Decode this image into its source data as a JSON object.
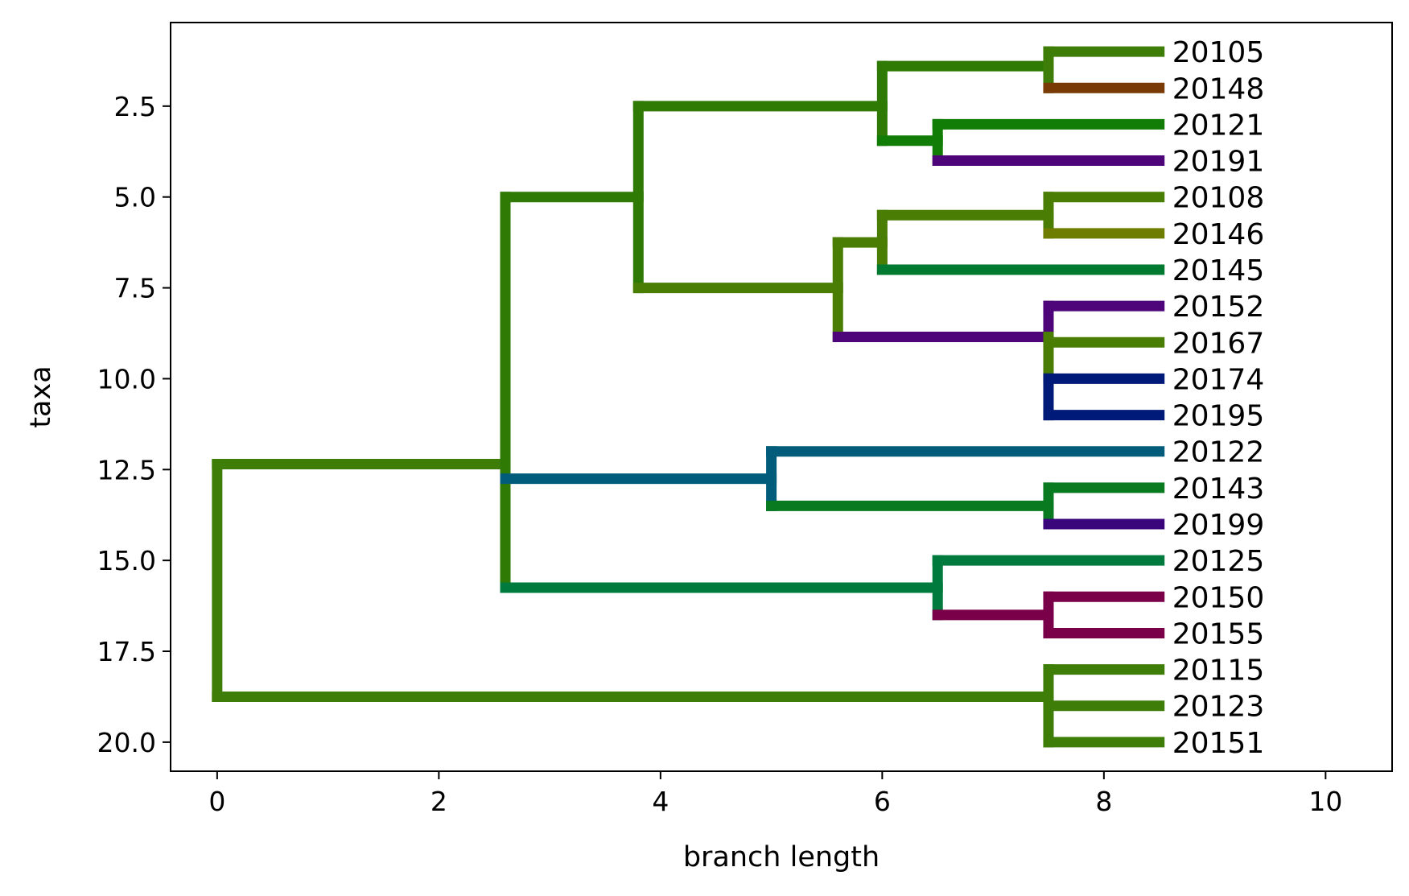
{
  "chart_data": {
    "type": "tree",
    "xlabel": "branch length",
    "ylabel": "taxa",
    "xlim": [
      -0.42,
      10.6
    ],
    "ylim": [
      20.8,
      0.2
    ],
    "xticks": [
      "0",
      "2",
      "4",
      "6",
      "8",
      "10"
    ],
    "xtick_values": [
      0,
      2,
      4,
      6,
      8,
      10
    ],
    "yticks": [
      "2.5",
      "5.0",
      "7.5",
      "10.0",
      "12.5",
      "15.0",
      "17.5",
      "20.0"
    ],
    "ytick_values": [
      2.5,
      5.0,
      7.5,
      10.0,
      12.5,
      15.0,
      17.5,
      20.0
    ],
    "leaves": [
      {
        "name": "20105",
        "y": 1,
        "x": 8.5
      },
      {
        "name": "20148",
        "y": 2,
        "x": 8.5
      },
      {
        "name": "20121",
        "y": 3,
        "x": 8.5
      },
      {
        "name": "20191",
        "y": 4,
        "x": 8.5
      },
      {
        "name": "20108",
        "y": 5,
        "x": 8.5
      },
      {
        "name": "20146",
        "y": 6,
        "x": 8.5
      },
      {
        "name": "20145",
        "y": 7,
        "x": 8.5
      },
      {
        "name": "20152",
        "y": 8,
        "x": 8.5
      },
      {
        "name": "20167",
        "y": 9,
        "x": 8.5
      },
      {
        "name": "20174",
        "y": 10,
        "x": 8.5
      },
      {
        "name": "20195",
        "y": 11,
        "x": 8.5
      },
      {
        "name": "20122",
        "y": 12,
        "x": 8.5
      },
      {
        "name": "20143",
        "y": 13,
        "x": 8.5
      },
      {
        "name": "20199",
        "y": 14,
        "x": 8.5
      },
      {
        "name": "20125",
        "y": 15,
        "x": 8.5
      },
      {
        "name": "20150",
        "y": 16,
        "x": 8.5
      },
      {
        "name": "20155",
        "y": 17,
        "x": 8.5
      },
      {
        "name": "20115",
        "y": 18,
        "x": 8.5
      },
      {
        "name": "20123",
        "y": 19,
        "x": 8.5
      },
      {
        "name": "20151",
        "y": 20,
        "x": 8.5
      }
    ],
    "segments": [
      {
        "x1": 0,
        "y1": 12.35,
        "x2": 0,
        "y2": 18.75,
        "color": "#3d7d08"
      },
      {
        "x1": 0,
        "y1": 12.35,
        "x2": 2.6,
        "y2": 12.35,
        "color": "#3d7d08"
      },
      {
        "x1": 0,
        "y1": 18.75,
        "x2": 7.5,
        "y2": 18.75,
        "color": "#3d7d08"
      },
      {
        "x1": 2.6,
        "y1": 5.0,
        "x2": 2.6,
        "y2": 12.35,
        "color": "#2f7a05"
      },
      {
        "x1": 2.6,
        "y1": 12.35,
        "x2": 2.6,
        "y2": 15.75,
        "color": "#2f7a05"
      },
      {
        "x1": 2.6,
        "y1": 5.0,
        "x2": 3.8,
        "y2": 5.0,
        "color": "#2f7a05"
      },
      {
        "x1": 2.6,
        "y1": 12.75,
        "x2": 5.0,
        "y2": 12.75,
        "color": "#005c7a"
      },
      {
        "x1": 2.6,
        "y1": 15.75,
        "x2": 6.5,
        "y2": 15.75,
        "color": "#007a3d"
      },
      {
        "x1": 3.8,
        "y1": 2.5,
        "x2": 3.8,
        "y2": 7.5,
        "color": "#2f7a05"
      },
      {
        "x1": 3.8,
        "y1": 2.5,
        "x2": 6.0,
        "y2": 2.5,
        "color": "#2f7a05"
      },
      {
        "x1": 3.8,
        "y1": 7.5,
        "x2": 5.6,
        "y2": 7.5,
        "color": "#4a7d04"
      },
      {
        "x1": 6.0,
        "y1": 1.4,
        "x2": 6.0,
        "y2": 3.45,
        "color": "#2f7a05"
      },
      {
        "x1": 6.0,
        "y1": 1.4,
        "x2": 7.5,
        "y2": 1.4,
        "color": "#2f7a05"
      },
      {
        "x1": 6.0,
        "y1": 3.45,
        "x2": 6.5,
        "y2": 3.45,
        "color": "#127d06"
      },
      {
        "x1": 7.5,
        "y1": 1.0,
        "x2": 7.5,
        "y2": 2.0,
        "color": "#3d7d08"
      },
      {
        "x1": 7.5,
        "y1": 1.0,
        "x2": 8.5,
        "y2": 1.0,
        "color": "#3d7d08"
      },
      {
        "x1": 7.5,
        "y1": 2.0,
        "x2": 8.5,
        "y2": 2.0,
        "color": "#7a3a05"
      },
      {
        "x1": 6.5,
        "y1": 3.0,
        "x2": 6.5,
        "y2": 4.0,
        "color": "#127d06"
      },
      {
        "x1": 6.5,
        "y1": 3.0,
        "x2": 8.5,
        "y2": 3.0,
        "color": "#127d06"
      },
      {
        "x1": 6.5,
        "y1": 4.0,
        "x2": 8.5,
        "y2": 4.0,
        "color": "#4e057a"
      },
      {
        "x1": 5.6,
        "y1": 6.25,
        "x2": 5.6,
        "y2": 8.85,
        "color": "#4a7d04"
      },
      {
        "x1": 5.6,
        "y1": 6.25,
        "x2": 6.0,
        "y2": 6.25,
        "color": "#4a7d04"
      },
      {
        "x1": 5.6,
        "y1": 8.85,
        "x2": 7.5,
        "y2": 8.85,
        "color": "#4e057a"
      },
      {
        "x1": 6.0,
        "y1": 5.5,
        "x2": 6.0,
        "y2": 7.0,
        "color": "#4a7d04"
      },
      {
        "x1": 6.0,
        "y1": 5.5,
        "x2": 7.5,
        "y2": 5.5,
        "color": "#4a7d04"
      },
      {
        "x1": 6.0,
        "y1": 7.0,
        "x2": 8.5,
        "y2": 7.0,
        "color": "#007a30"
      },
      {
        "x1": 7.5,
        "y1": 5.0,
        "x2": 7.5,
        "y2": 6.0,
        "color": "#4a7d04"
      },
      {
        "x1": 7.5,
        "y1": 5.0,
        "x2": 8.5,
        "y2": 5.0,
        "color": "#4a7d04"
      },
      {
        "x1": 7.5,
        "y1": 6.0,
        "x2": 8.5,
        "y2": 6.0,
        "color": "#6e7d00"
      },
      {
        "x1": 7.5,
        "y1": 8.0,
        "x2": 7.5,
        "y2": 8.85,
        "color": "#4e057a"
      },
      {
        "x1": 7.5,
        "y1": 8.85,
        "x2": 7.5,
        "y2": 10.0,
        "color": "#4a7d04"
      },
      {
        "x1": 7.5,
        "y1": 10.0,
        "x2": 7.5,
        "y2": 11.0,
        "color": "#001a7a"
      },
      {
        "x1": 7.5,
        "y1": 8.0,
        "x2": 8.5,
        "y2": 8.0,
        "color": "#4e057a"
      },
      {
        "x1": 7.5,
        "y1": 9.0,
        "x2": 8.5,
        "y2": 9.0,
        "color": "#4a7d04"
      },
      {
        "x1": 7.5,
        "y1": 10.0,
        "x2": 8.5,
        "y2": 10.0,
        "color": "#001a7a"
      },
      {
        "x1": 7.5,
        "y1": 11.0,
        "x2": 8.5,
        "y2": 11.0,
        "color": "#001a7a"
      },
      {
        "x1": 5.0,
        "y1": 12.0,
        "x2": 5.0,
        "y2": 13.5,
        "color": "#005c7a"
      },
      {
        "x1": 5.0,
        "y1": 12.0,
        "x2": 8.5,
        "y2": 12.0,
        "color": "#005c7a"
      },
      {
        "x1": 5.0,
        "y1": 13.5,
        "x2": 7.5,
        "y2": 13.5,
        "color": "#0a7a20"
      },
      {
        "x1": 7.5,
        "y1": 13.0,
        "x2": 7.5,
        "y2": 14.0,
        "color": "#0a7a20"
      },
      {
        "x1": 7.5,
        "y1": 13.0,
        "x2": 8.5,
        "y2": 13.0,
        "color": "#0a7a20"
      },
      {
        "x1": 7.5,
        "y1": 14.0,
        "x2": 8.5,
        "y2": 14.0,
        "color": "#3a057a"
      },
      {
        "x1": 6.5,
        "y1": 15.0,
        "x2": 6.5,
        "y2": 16.5,
        "color": "#007a3d"
      },
      {
        "x1": 6.5,
        "y1": 15.0,
        "x2": 8.5,
        "y2": 15.0,
        "color": "#007a3d"
      },
      {
        "x1": 6.5,
        "y1": 16.5,
        "x2": 7.5,
        "y2": 16.5,
        "color": "#7a004a"
      },
      {
        "x1": 7.5,
        "y1": 16.0,
        "x2": 7.5,
        "y2": 17.0,
        "color": "#7a004a"
      },
      {
        "x1": 7.5,
        "y1": 16.0,
        "x2": 8.5,
        "y2": 16.0,
        "color": "#7a004a"
      },
      {
        "x1": 7.5,
        "y1": 17.0,
        "x2": 8.5,
        "y2": 17.0,
        "color": "#7a004a"
      },
      {
        "x1": 7.5,
        "y1": 18.0,
        "x2": 7.5,
        "y2": 20.0,
        "color": "#3d7d08"
      },
      {
        "x1": 7.5,
        "y1": 18.0,
        "x2": 8.5,
        "y2": 18.0,
        "color": "#3d7d08"
      },
      {
        "x1": 7.5,
        "y1": 19.0,
        "x2": 8.5,
        "y2": 19.0,
        "color": "#3d7d08"
      },
      {
        "x1": 7.5,
        "y1": 20.0,
        "x2": 8.5,
        "y2": 20.0,
        "color": "#3d7d08"
      }
    ]
  }
}
